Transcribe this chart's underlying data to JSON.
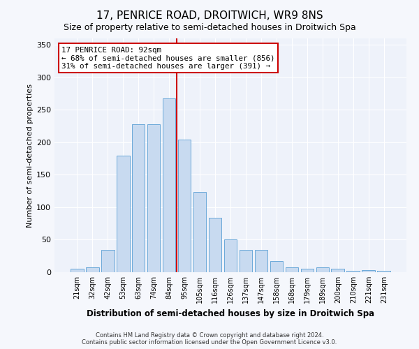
{
  "title": "17, PENRICE ROAD, DROITWICH, WR9 8NS",
  "subtitle": "Size of property relative to semi-detached houses in Droitwich Spa",
  "xlabel": "Distribution of semi-detached houses by size in Droitwich Spa",
  "ylabel": "Number of semi-detached properties",
  "categories": [
    "21sqm",
    "32sqm",
    "42sqm",
    "53sqm",
    "63sqm",
    "74sqm",
    "84sqm",
    "95sqm",
    "105sqm",
    "116sqm",
    "126sqm",
    "137sqm",
    "147sqm",
    "158sqm",
    "168sqm",
    "179sqm",
    "189sqm",
    "200sqm",
    "210sqm",
    "221sqm",
    "231sqm"
  ],
  "values": [
    5,
    8,
    34,
    180,
    228,
    228,
    268,
    204,
    124,
    84,
    50,
    34,
    34,
    17,
    8,
    5,
    8,
    5,
    2,
    3,
    2
  ],
  "bar_color": "#c8daf0",
  "bar_edge_color": "#5a9fd4",
  "vline_color": "#cc0000",
  "annotation_line1": "17 PENRICE ROAD: 92sqm",
  "annotation_line2": "← 68% of semi-detached houses are smaller (856)",
  "annotation_line3": "31% of semi-detached houses are larger (391) →",
  "annotation_box_color": "#ffffff",
  "annotation_box_edge": "#cc0000",
  "ylim": [
    0,
    360
  ],
  "yticks": [
    0,
    50,
    100,
    150,
    200,
    250,
    300,
    350
  ],
  "footer": "Contains HM Land Registry data © Crown copyright and database right 2024.\nContains public sector information licensed under the Open Government Licence v3.0.",
  "bg_color": "#eef2fa",
  "grid_color": "#ffffff",
  "fig_bg_color": "#f5f7fc"
}
